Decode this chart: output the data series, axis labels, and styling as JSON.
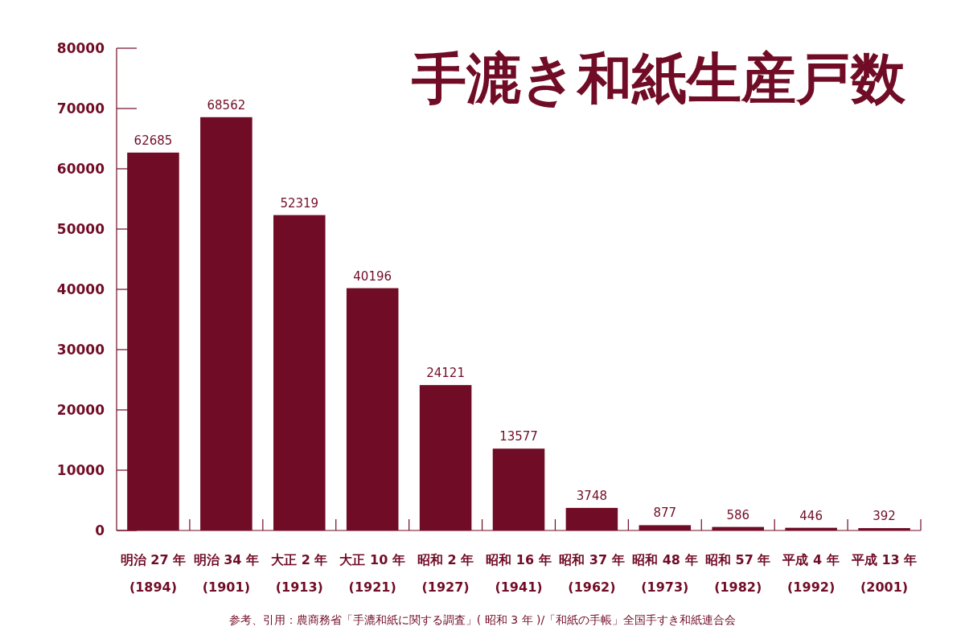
{
  "chart_data": {
    "type": "bar",
    "title": "手漉き和紙生産戸数",
    "categories": [
      "明治 27 年\n(1894)",
      "明治 34 年\n(1901)",
      "大正 2 年\n(1913)",
      "大正 10 年\n(1921)",
      "昭和 2 年\n(1927)",
      "昭和 16 年\n(1941)",
      "昭和 37 年\n(1962)",
      "昭和 48 年\n(1973)",
      "昭和 57 年\n(1982)",
      "平成 4 年\n(1992)",
      "平成 13 年\n(2001)"
    ],
    "values": [
      62685,
      68562,
      52319,
      40196,
      24121,
      13577,
      3748,
      877,
      586,
      446,
      392
    ],
    "color": "#700c25",
    "ylim": [
      0,
      80000
    ],
    "yticks": [
      0,
      10000,
      20000,
      30000,
      40000,
      50000,
      60000,
      70000,
      80000
    ],
    "data_labels": true,
    "annotations": [
      "参考、引用：農商務省「手漉和紙に関する調査」( 昭和 3 年 )/「和紙の手帳」全国手すき和紙連合会"
    ]
  }
}
